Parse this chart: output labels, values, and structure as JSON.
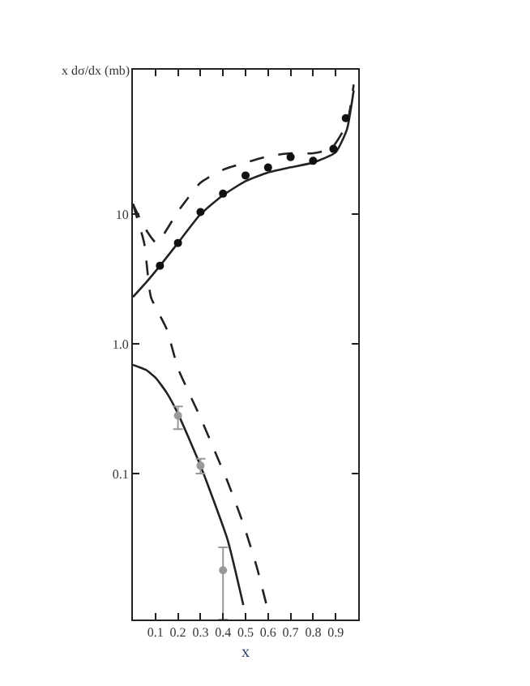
{
  "chart_data": {
    "type": "scatter",
    "xlabel": "x",
    "ylabel": "x dσ/dx (mb)",
    "log": "y",
    "xlim": [
      0,
      1.0
    ],
    "xticks": [
      0.1,
      0.2,
      0.3,
      0.4,
      0.5,
      0.6,
      0.7,
      0.8,
      0.9
    ],
    "ylim": [
      0.0075,
      130
    ],
    "yticks": [
      {
        "value": 0.1,
        "label": "0.1"
      },
      {
        "value": 1,
        "label": "1.0"
      },
      10
    ],
    "series": [
      {
        "type": "line",
        "line_style": "solid",
        "marker": "none",
        "color": "#222222",
        "x": [
          0,
          0.06,
          0.12,
          0.2,
          0.3,
          0.4,
          0.5,
          0.6,
          0.7,
          0.8,
          0.9,
          0.95,
          0.98
        ],
        "values": [
          2.3,
          3.0,
          4,
          6,
          10,
          14,
          18,
          21,
          23,
          25,
          30,
          45,
          90
        ]
      },
      {
        "type": "line",
        "line_style": "dashed",
        "marker": "none",
        "color": "#222222",
        "x": [
          0,
          0.05,
          0.105,
          0.2,
          0.3,
          0.4,
          0.5,
          0.6,
          0.7,
          0.8,
          0.88,
          0.95,
          0.98
        ],
        "values": [
          12,
          8,
          6.0,
          10.5,
          17.5,
          22,
          25,
          28,
          29.5,
          29.5,
          32,
          50,
          100
        ]
      },
      {
        "type": "line",
        "line_style": "dashed",
        "marker": "none",
        "color": "#222222",
        "x": [
          0,
          0.05,
          0.08,
          0.15,
          0.2,
          0.3,
          0.37,
          0.42,
          0.49,
          0.55,
          0.6
        ],
        "values": [
          12,
          6,
          2.3,
          1.3,
          0.65,
          0.27,
          0.14,
          0.087,
          0.041,
          0.019,
          0.0087
        ]
      },
      {
        "type": "line",
        "line_style": "solid",
        "marker": "none",
        "color": "#222222",
        "x": [
          0,
          0.058,
          0.1,
          0.15,
          0.2,
          0.3,
          0.42,
          0.49
        ],
        "values": [
          0.69,
          0.63,
          0.55,
          0.42,
          0.29,
          0.115,
          0.031,
          0.0097
        ]
      },
      {
        "marker": "circle",
        "color": "#111111",
        "x": [
          0.12,
          0.2,
          0.3,
          0.4,
          0.5,
          0.6,
          0.7,
          0.8,
          0.89,
          0.945
        ],
        "values": [
          4.0,
          6.0,
          10.4,
          14.4,
          19.9,
          22.9,
          27.6,
          25.8,
          31.9,
          55
        ]
      },
      {
        "marker": "circle",
        "color": "#999999",
        "x": [
          0.2,
          0.3,
          0.4
        ],
        "values": [
          0.28,
          0.115,
          0.018
        ],
        "errors": [
          [
            0.22,
            0.33
          ],
          [
            0.1,
            0.13
          ],
          [
            0.0075,
            0.027
          ]
        ]
      }
    ]
  }
}
